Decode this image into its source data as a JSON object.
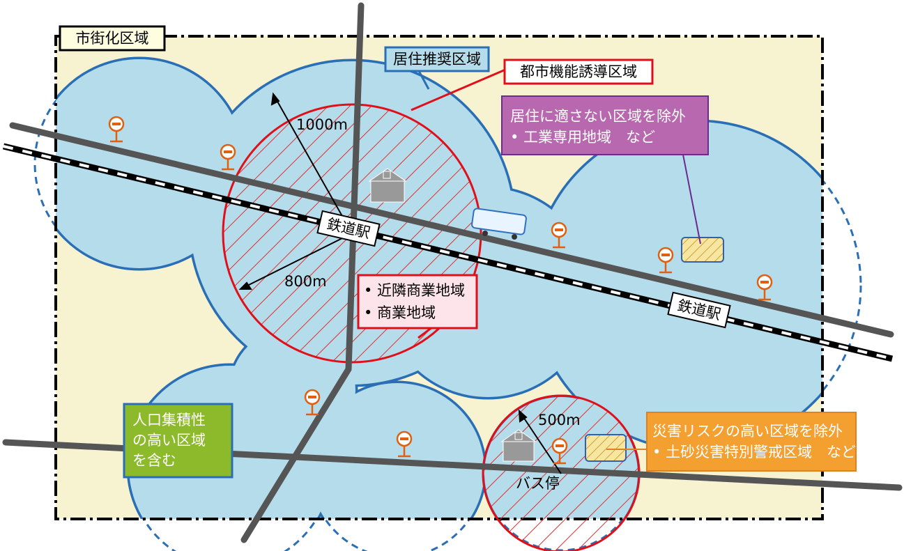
{
  "urbanization_area": "市街化区域",
  "residential_area": "居住推奨区域",
  "urban_function_area": "都市機能誘導区域",
  "exclusion_unsuitable": {
    "title": "居住に適さない区域を除外",
    "item": "• 工業専用地域　など"
  },
  "radius_large": "1000m",
  "radius_medium": "800m",
  "radius_small": "500m",
  "stations": [
    "鉄道駅",
    "鉄道駅"
  ],
  "commercial": {
    "items": [
      "• 近隣商業地域",
      "• 商業地域"
    ]
  },
  "bus_stop": "バス停",
  "exclusion_disaster": {
    "title": "災害リスクの高い区域を除外",
    "item": "• 土砂災害特別警戒区域　など"
  },
  "population": {
    "lines": [
      "人口集積性",
      "の高い区域",
      "を含む"
    ]
  }
}
